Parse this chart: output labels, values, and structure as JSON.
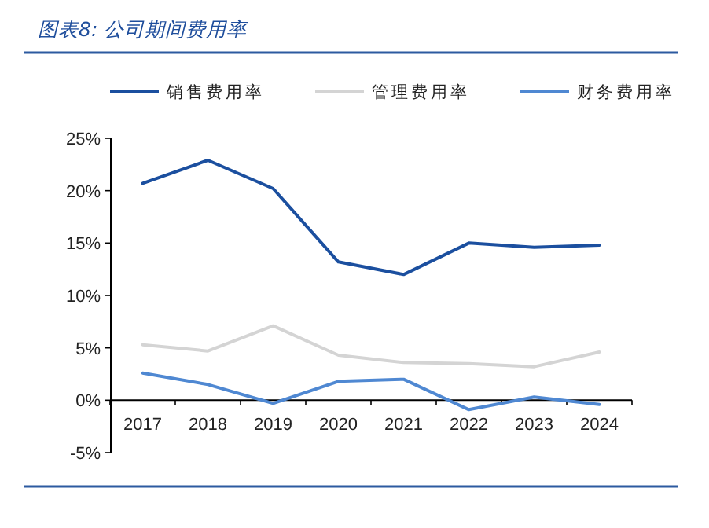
{
  "chart_data": {
    "type": "line",
    "title": "图表8:  公司期间费用率",
    "categories": [
      "2017",
      "2018",
      "2019",
      "2020",
      "2021",
      "2022",
      "2023",
      "2024"
    ],
    "series": [
      {
        "name": "销售费用率",
        "color": "#1b4f9f",
        "values": [
          20.7,
          22.9,
          20.2,
          13.2,
          12.0,
          15.0,
          14.6,
          14.8
        ]
      },
      {
        "name": "管理费用率",
        "color": "#d4d4d4",
        "values": [
          5.3,
          4.7,
          7.1,
          4.3,
          3.6,
          3.5,
          3.2,
          4.6
        ]
      },
      {
        "name": "财务费用率",
        "color": "#4f88d2",
        "values": [
          2.6,
          1.5,
          -0.3,
          1.8,
          2.0,
          -0.9,
          0.3,
          -0.4
        ]
      }
    ],
    "ylim": [
      -5,
      25
    ],
    "yticks": [
      {
        "value": -5,
        "label": "-5%"
      },
      {
        "value": 0,
        "label": "0%"
      },
      {
        "value": 5,
        "label": "5%"
      },
      {
        "value": 10,
        "label": "10%"
      },
      {
        "value": 15,
        "label": "15%"
      },
      {
        "value": 20,
        "label": "20%"
      },
      {
        "value": 25,
        "label": "25%"
      }
    ],
    "legend": "top",
    "grid": false,
    "marker": "none",
    "line_style": "solid"
  }
}
